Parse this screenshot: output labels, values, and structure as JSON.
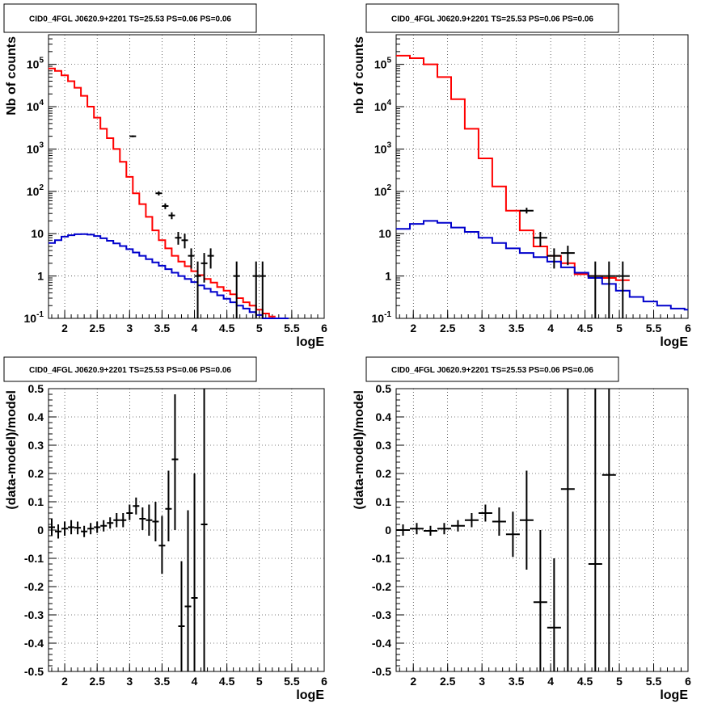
{
  "chart_data": [
    {
      "type": "line",
      "title": "CID0_4FGL J0620.9+2201 TS=25.53 PS=0.06 PS=0.06",
      "xlabel": "logE",
      "ylabel": "Nb of counts",
      "log_y": true,
      "grid": true,
      "xlim": [
        1.75,
        6.0
      ],
      "ylim": [
        0.1,
        500000
      ],
      "x_ticks": [
        "2",
        "2.5",
        "3",
        "3.5",
        "4",
        "4.5",
        "5",
        "5.5",
        "6"
      ],
      "y_ticks": [
        "10^-1",
        "1",
        "10",
        "10^2",
        "10^3",
        "10^4",
        "10^5"
      ],
      "bin_edges": [
        1.75,
        1.85,
        1.95,
        2.05,
        2.15,
        2.25,
        2.35,
        2.45,
        2.55,
        2.65,
        2.75,
        2.85,
        2.95,
        3.05,
        3.15,
        3.25,
        3.35,
        3.45,
        3.55,
        3.65,
        3.75,
        3.85,
        3.95,
        4.05,
        4.15,
        4.25,
        4.35,
        4.45,
        4.55,
        4.65,
        4.75,
        4.85,
        4.95,
        5.05,
        5.15,
        5.25,
        5.35,
        5.45,
        5.55,
        5.65,
        5.75,
        5.85,
        5.95,
        6.0
      ],
      "series": [
        {
          "color": "#ff0000",
          "style": "step",
          "values": [
            80000,
            70000,
            55000,
            40000,
            28000,
            18000,
            10000,
            5500,
            3000,
            1800,
            1000,
            500,
            220,
            90,
            50,
            25,
            12,
            7,
            4.5,
            3,
            2.2,
            1.7,
            1.3,
            1.05,
            0.85,
            0.7,
            0.55,
            0.45,
            0.37,
            0.3,
            0.24,
            0.2,
            0.16,
            0.13,
            0.11
          ]
        },
        {
          "color": "#0000cc",
          "style": "step",
          "values": [
            6,
            7,
            8.5,
            9.2,
            9.7,
            9.8,
            9.5,
            8.8,
            7.8,
            6.8,
            5.9,
            5.1,
            4.3,
            3.6,
            3.0,
            2.5,
            2.1,
            1.75,
            1.45,
            1.2,
            1.0,
            0.85,
            0.72,
            0.6,
            0.5,
            0.42,
            0.35,
            0.29,
            0.24,
            0.2,
            0.17,
            0.14,
            0.12,
            0.1,
            0.09,
            0.085,
            0.08
          ]
        },
        {
          "color": "#000000",
          "style": "points",
          "points": [
            {
              "x": 3.05,
              "y": 2000,
              "ex": 0.05,
              "ylo": 1900,
              "yhi": 2100
            },
            {
              "x": 3.45,
              "y": 90,
              "ex": 0.05,
              "ylo": 80,
              "yhi": 100
            },
            {
              "x": 3.55,
              "y": 45,
              "ex": 0.05,
              "ylo": 38,
              "yhi": 52
            },
            {
              "x": 3.65,
              "y": 27,
              "ex": 0.05,
              "ylo": 22,
              "yhi": 32
            },
            {
              "x": 3.75,
              "y": 8,
              "ex": 0.05,
              "ylo": 5.5,
              "yhi": 11
            },
            {
              "x": 3.85,
              "y": 7,
              "ex": 0.05,
              "ylo": 4.5,
              "yhi": 10
            },
            {
              "x": 3.95,
              "y": 3,
              "ex": 0.05,
              "ylo": 1.5,
              "yhi": 4.5
            },
            {
              "x": 4.05,
              "y": 1,
              "ex": 0.05,
              "ylo": 0.1,
              "yhi": 2.2
            },
            {
              "x": 4.15,
              "y": 2,
              "ex": 0.05,
              "ylo": 0.7,
              "yhi": 3.5
            },
            {
              "x": 4.25,
              "y": 3,
              "ex": 0.05,
              "ylo": 1.5,
              "yhi": 4.5
            },
            {
              "x": 4.65,
              "y": 1,
              "ex": 0.05,
              "ylo": 0.1,
              "yhi": 2.2
            },
            {
              "x": 4.95,
              "y": 1,
              "ex": 0.05,
              "ylo": 0.1,
              "yhi": 2.2
            },
            {
              "x": 5.05,
              "y": 1,
              "ex": 0.05,
              "ylo": 0.1,
              "yhi": 2.2
            }
          ]
        }
      ]
    },
    {
      "type": "line",
      "title": "CID0_4FGL J0620.9+2201 TS=25.53 PS=0.06 PS=0.06",
      "xlabel": "logE",
      "ylabel": "nb of counts",
      "log_y": true,
      "grid": true,
      "xlim": [
        1.75,
        6.0
      ],
      "ylim": [
        0.1,
        500000
      ],
      "x_ticks": [
        "2",
        "2.5",
        "3",
        "3.5",
        "4",
        "4.5",
        "5",
        "5.5",
        "6"
      ],
      "y_ticks": [
        "10^-1",
        "1",
        "10",
        "10^2",
        "10^3",
        "10^4",
        "10^5"
      ],
      "bin_edges": [
        1.75,
        1.95,
        2.15,
        2.35,
        2.55,
        2.75,
        2.95,
        3.15,
        3.35,
        3.55,
        3.75,
        3.95,
        4.15,
        4.35,
        4.55,
        4.75,
        4.95,
        5.15,
        5.35,
        5.55,
        5.75,
        5.95,
        6.0
      ],
      "series": [
        {
          "color": "#ff0000",
          "style": "step",
          "values": [
            160000,
            140000,
            100000,
            50000,
            15000,
            3000,
            600,
            130,
            35,
            12,
            5,
            3,
            2,
            1.1,
            1,
            0.9,
            0.8
          ]
        },
        {
          "color": "#0000cc",
          "style": "step",
          "values": [
            13,
            17,
            20,
            18,
            14,
            11,
            8,
            6,
            4.5,
            3.5,
            2.8,
            2.2,
            1.6,
            1.2,
            0.9,
            0.65,
            0.45,
            0.32,
            0.25,
            0.2,
            0.17,
            0.16
          ]
        },
        {
          "color": "#000000",
          "style": "points",
          "points": [
            {
              "x": 3.65,
              "y": 35,
              "ex": 0.1,
              "ylo": 30,
              "yhi": 41
            },
            {
              "x": 3.85,
              "y": 8,
              "ex": 0.1,
              "ylo": 5,
              "yhi": 11
            },
            {
              "x": 4.05,
              "y": 3,
              "ex": 0.1,
              "ylo": 1.5,
              "yhi": 4.5
            },
            {
              "x": 4.25,
              "y": 3.5,
              "ex": 0.1,
              "ylo": 1.8,
              "yhi": 5.2
            },
            {
              "x": 4.65,
              "y": 1,
              "ex": 0.1,
              "ylo": 0.1,
              "yhi": 2.2
            },
            {
              "x": 4.85,
              "y": 1,
              "ex": 0.1,
              "ylo": 0.1,
              "yhi": 2.2
            },
            {
              "x": 5.05,
              "y": 1,
              "ex": 0.1,
              "ylo": 0.1,
              "yhi": 2.2
            }
          ]
        }
      ]
    },
    {
      "type": "scatter",
      "title": "CID0_4FGL J0620.9+2201 TS=25.53 PS=0.06 PS=0.06",
      "xlabel": "logE",
      "ylabel": "(data-model)/model",
      "log_y": false,
      "grid": true,
      "xlim": [
        1.75,
        6.0
      ],
      "ylim": [
        -0.5,
        0.5
      ],
      "x_ticks": [
        "2",
        "2.5",
        "3",
        "3.5",
        "4",
        "4.5",
        "5",
        "5.5",
        "6"
      ],
      "y_ticks": [
        "-0.5",
        "-0.4",
        "-0.3",
        "-0.2",
        "-0.1",
        "0",
        "0.1",
        "0.2",
        "0.3",
        "0.4",
        "0.5"
      ],
      "series": [
        {
          "color": "#000000",
          "style": "points",
          "points": [
            {
              "x": 1.8,
              "y": 0.01,
              "ex": 0.05,
              "ylo": -0.02,
              "yhi": 0.04
            },
            {
              "x": 1.9,
              "y": -0.005,
              "ex": 0.05,
              "ylo": -0.03,
              "yhi": 0.02
            },
            {
              "x": 2.0,
              "y": 0.005,
              "ex": 0.05,
              "ylo": -0.02,
              "yhi": 0.03
            },
            {
              "x": 2.1,
              "y": 0.01,
              "ex": 0.05,
              "ylo": -0.015,
              "yhi": 0.035
            },
            {
              "x": 2.2,
              "y": 0.008,
              "ex": 0.05,
              "ylo": -0.015,
              "yhi": 0.03
            },
            {
              "x": 2.3,
              "y": -0.005,
              "ex": 0.05,
              "ylo": -0.025,
              "yhi": 0.015
            },
            {
              "x": 2.4,
              "y": 0.005,
              "ex": 0.05,
              "ylo": -0.015,
              "yhi": 0.025
            },
            {
              "x": 2.5,
              "y": 0.01,
              "ex": 0.05,
              "ylo": -0.01,
              "yhi": 0.03
            },
            {
              "x": 2.6,
              "y": 0.015,
              "ex": 0.05,
              "ylo": -0.005,
              "yhi": 0.035
            },
            {
              "x": 2.7,
              "y": 0.025,
              "ex": 0.05,
              "ylo": 0.005,
              "yhi": 0.045
            },
            {
              "x": 2.8,
              "y": 0.035,
              "ex": 0.05,
              "ylo": 0.01,
              "yhi": 0.06
            },
            {
              "x": 2.9,
              "y": 0.035,
              "ex": 0.05,
              "ylo": 0.01,
              "yhi": 0.06
            },
            {
              "x": 3.0,
              "y": 0.06,
              "ex": 0.05,
              "ylo": 0.035,
              "yhi": 0.09
            },
            {
              "x": 3.1,
              "y": 0.085,
              "ex": 0.05,
              "ylo": 0.055,
              "yhi": 0.115
            },
            {
              "x": 3.2,
              "y": 0.04,
              "ex": 0.05,
              "ylo": 0.0,
              "yhi": 0.08
            },
            {
              "x": 3.3,
              "y": 0.035,
              "ex": 0.05,
              "ylo": -0.02,
              "yhi": 0.09
            },
            {
              "x": 3.4,
              "y": 0.03,
              "ex": 0.05,
              "ylo": -0.04,
              "yhi": 0.1
            },
            {
              "x": 3.5,
              "y": -0.055,
              "ex": 0.05,
              "ylo": -0.155,
              "yhi": 0.05
            },
            {
              "x": 3.6,
              "y": 0.075,
              "ex": 0.05,
              "ylo": -0.04,
              "yhi": 0.21
            },
            {
              "x": 3.7,
              "y": 0.25,
              "ex": 0.05,
              "ylo": 0.0,
              "yhi": 0.48
            },
            {
              "x": 3.8,
              "y": -0.34,
              "ex": 0.05,
              "ylo": -0.5,
              "yhi": -0.11
            },
            {
              "x": 3.9,
              "y": -0.27,
              "ex": 0.05,
              "ylo": -0.5,
              "yhi": 0.07
            },
            {
              "x": 4.0,
              "y": -0.24,
              "ex": 0.05,
              "ylo": -0.5,
              "yhi": 0.2
            },
            {
              "x": 4.15,
              "y": 0.02,
              "ex": 0.05,
              "ylo": -0.5,
              "yhi": 0.5
            }
          ]
        }
      ]
    },
    {
      "type": "scatter",
      "title": "CID0_4FGL J0620.9+2201 TS=25.53 PS=0.06 PS=0.06",
      "xlabel": "logE",
      "ylabel": "(data-model)/model",
      "log_y": false,
      "grid": true,
      "xlim": [
        1.75,
        6.0
      ],
      "ylim": [
        -0.5,
        0.5
      ],
      "x_ticks": [
        "2",
        "2.5",
        "3",
        "3.5",
        "4",
        "4.5",
        "5",
        "5.5",
        "6"
      ],
      "y_ticks": [
        "-0.5",
        "-0.4",
        "-0.3",
        "-0.2",
        "-0.1",
        "0",
        "0.1",
        "0.2",
        "0.3",
        "0.4",
        "0.5"
      ],
      "series": [
        {
          "color": "#000000",
          "style": "points",
          "points": [
            {
              "x": 1.85,
              "y": 0.0,
              "ex": 0.1,
              "ylo": -0.02,
              "yhi": 0.02
            },
            {
              "x": 2.05,
              "y": 0.005,
              "ex": 0.1,
              "ylo": -0.015,
              "yhi": 0.025
            },
            {
              "x": 2.25,
              "y": -0.003,
              "ex": 0.1,
              "ylo": -0.02,
              "yhi": 0.015
            },
            {
              "x": 2.45,
              "y": 0.005,
              "ex": 0.1,
              "ylo": -0.015,
              "yhi": 0.025
            },
            {
              "x": 2.65,
              "y": 0.015,
              "ex": 0.1,
              "ylo": -0.005,
              "yhi": 0.035
            },
            {
              "x": 2.85,
              "y": 0.035,
              "ex": 0.1,
              "ylo": 0.01,
              "yhi": 0.06
            },
            {
              "x": 3.05,
              "y": 0.06,
              "ex": 0.1,
              "ylo": 0.03,
              "yhi": 0.09
            },
            {
              "x": 3.25,
              "y": 0.03,
              "ex": 0.1,
              "ylo": -0.02,
              "yhi": 0.08
            },
            {
              "x": 3.45,
              "y": -0.015,
              "ex": 0.1,
              "ylo": -0.095,
              "yhi": 0.065
            },
            {
              "x": 3.65,
              "y": 0.035,
              "ex": 0.1,
              "ylo": -0.14,
              "yhi": 0.21
            },
            {
              "x": 3.85,
              "y": -0.255,
              "ex": 0.1,
              "ylo": -0.5,
              "yhi": 0.0
            },
            {
              "x": 4.05,
              "y": -0.345,
              "ex": 0.1,
              "ylo": -0.5,
              "yhi": -0.1
            },
            {
              "x": 4.25,
              "y": 0.145,
              "ex": 0.1,
              "ylo": -0.5,
              "yhi": 0.5
            },
            {
              "x": 4.65,
              "y": -0.12,
              "ex": 0.1,
              "ylo": -0.5,
              "yhi": 0.5
            },
            {
              "x": 4.85,
              "y": 0.195,
              "ex": 0.1,
              "ylo": -0.5,
              "yhi": 0.5
            }
          ]
        }
      ]
    }
  ]
}
